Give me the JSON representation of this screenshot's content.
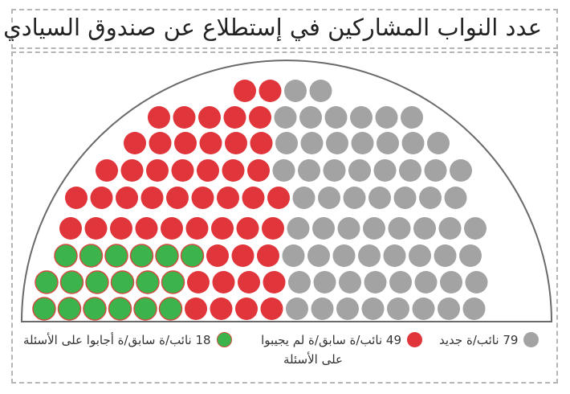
{
  "title": "عدد النواب المشاركين في إستطلاع عن صندوق السيادي",
  "colors": {
    "new": "#a3a3a3",
    "former_no_answer": "#e0353b",
    "former_answered": "#3cb44b",
    "former_answered_stroke": "#d24b40",
    "border": "#b5b5b5",
    "arc": "#6a6a6a"
  },
  "chart_data": {
    "type": "parliament",
    "total": 146,
    "series": [
      {
        "name": "نائب/ة جديد",
        "count": 79,
        "color": "#a3a3a3"
      },
      {
        "name": "نائب/ة سابق/ة لم يجيبوا على الأسئلة",
        "count": 49,
        "color": "#e0353b"
      },
      {
        "name": "نائب/ة سابق/ة أجابوا على الأسئلة",
        "count": 18,
        "color": "#3cb44b"
      }
    ]
  },
  "legend": [
    {
      "count": "79",
      "label": "نائب/ة جديد"
    },
    {
      "count": "49",
      "label": "نائب/ة سابق/ة لم يجيبوا",
      "label2": "على الأسئلة"
    },
    {
      "count": "18",
      "label": "نائب/ة سابق/ة أجابوا على الأسئلة"
    }
  ]
}
